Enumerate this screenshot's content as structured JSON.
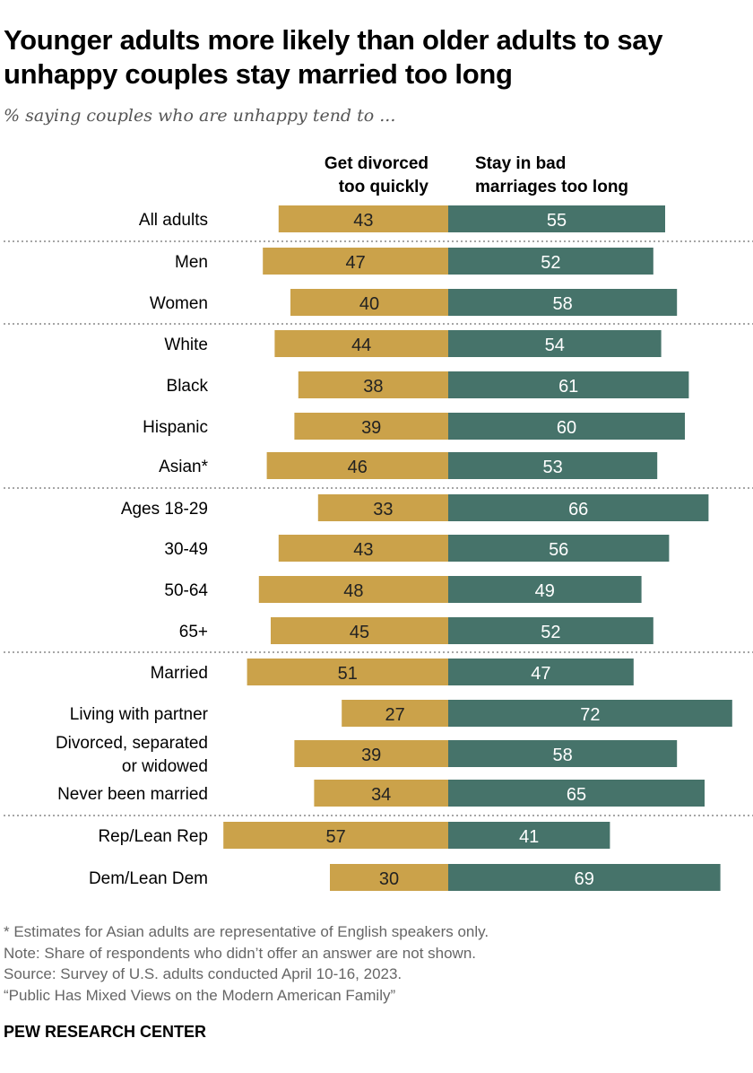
{
  "title": "Younger adults more likely than older adults to say unhappy couples stay married too long",
  "subtitle": "% saying couples who are unhappy tend to ...",
  "chart_data": {
    "type": "bar",
    "orientation": "horizontal-diverging",
    "series": [
      {
        "name": "Get divorced too quickly",
        "color": "#CBA24A",
        "values": [
          43,
          47,
          40,
          44,
          38,
          39,
          46,
          33,
          43,
          48,
          45,
          51,
          27,
          39,
          34,
          57,
          30
        ]
      },
      {
        "name": "Stay in bad marriages too long",
        "color": "#46736A",
        "values": [
          55,
          52,
          58,
          54,
          61,
          60,
          53,
          66,
          56,
          49,
          52,
          47,
          72,
          58,
          65,
          41,
          69
        ]
      }
    ],
    "categories": [
      "All adults",
      "Men",
      "Women",
      "White",
      "Black",
      "Hispanic",
      "Asian*",
      "Ages 18-29",
      "30-49",
      "50-64",
      "65+",
      "Married",
      "Living with partner",
      "Divorced, separated\nor widowed",
      "Never been married",
      "Rep/Lean Rep",
      "Dem/Lean Dem"
    ],
    "groups_end_after": [
      0,
      2,
      6,
      10,
      14
    ],
    "legend_labels": [
      "Get divorced\ntoo quickly",
      "Stay in bad\nmarriages too long"
    ],
    "legend": "top",
    "grid": false
  },
  "notes": [
    "* Estimates for Asian adults are representative of English speakers only.",
    "Note: Share of respondents who didn’t offer an answer are not shown.",
    "Source: Survey of U.S. adults conducted April 10-16, 2023.",
    "“Public Has Mixed Views on the Modern American Family”"
  ],
  "brand": "PEW RESEARCH CENTER"
}
